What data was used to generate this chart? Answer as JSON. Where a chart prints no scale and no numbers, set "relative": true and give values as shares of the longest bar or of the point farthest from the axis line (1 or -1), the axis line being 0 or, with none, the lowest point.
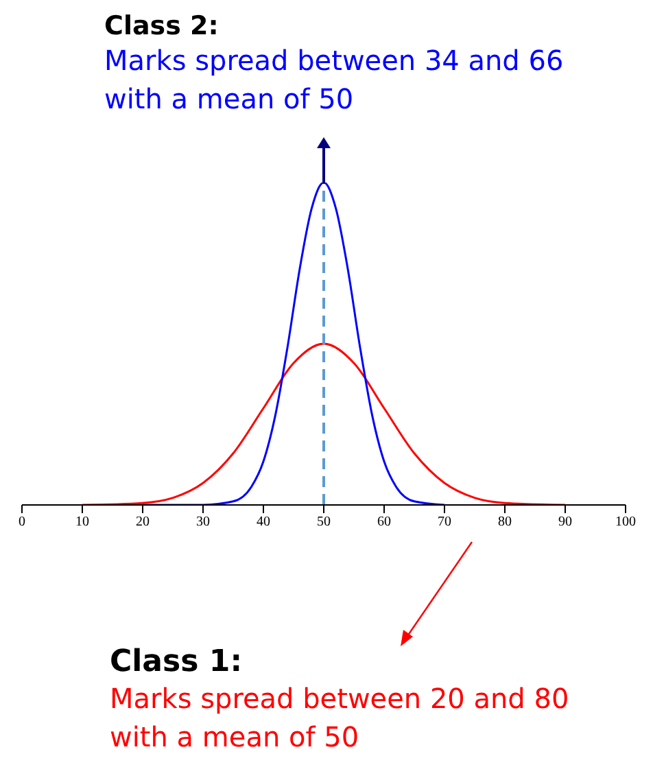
{
  "chart_data": {
    "type": "line",
    "relative": true,
    "tick_labels": "x",
    "marker": "none",
    "line_style": "solid",
    "xlim": [
      0,
      100
    ],
    "xticks": [
      0,
      10,
      20,
      30,
      40,
      50,
      60,
      70,
      80,
      90,
      100
    ],
    "annotations": [
      "Class 2:",
      "Marks spread between 34 and 66 with a mean of 50",
      "Class 1:",
      "Marks spread between 20 and 80 with a mean of 50"
    ],
    "ref_lines": [
      {
        "axis": "x",
        "value": 50,
        "color": "#5b9bd5",
        "line_style": "dashed"
      }
    ],
    "series": [
      {
        "color": "#ff0000",
        "x": [
          10,
          20,
          25,
          30,
          35,
          40,
          45,
          50,
          55,
          60,
          65,
          70,
          75,
          80,
          90
        ],
        "values": [
          0,
          0.006,
          0.022,
          0.068,
          0.16,
          0.3,
          0.44,
          0.5,
          0.44,
          0.3,
          0.16,
          0.068,
          0.022,
          0.006,
          0
        ]
      },
      {
        "color": "#0000ff",
        "x": [
          20,
          30,
          35,
          38,
          40,
          42,
          44,
          46,
          48,
          50,
          52,
          54,
          56,
          58,
          60,
          62,
          65,
          70
        ],
        "values": [
          0,
          0,
          0.011,
          0.056,
          0.135,
          0.28,
          0.49,
          0.73,
          0.92,
          1,
          0.92,
          0.73,
          0.49,
          0.28,
          0.135,
          0.056,
          0.011,
          0
        ]
      }
    ]
  }
}
